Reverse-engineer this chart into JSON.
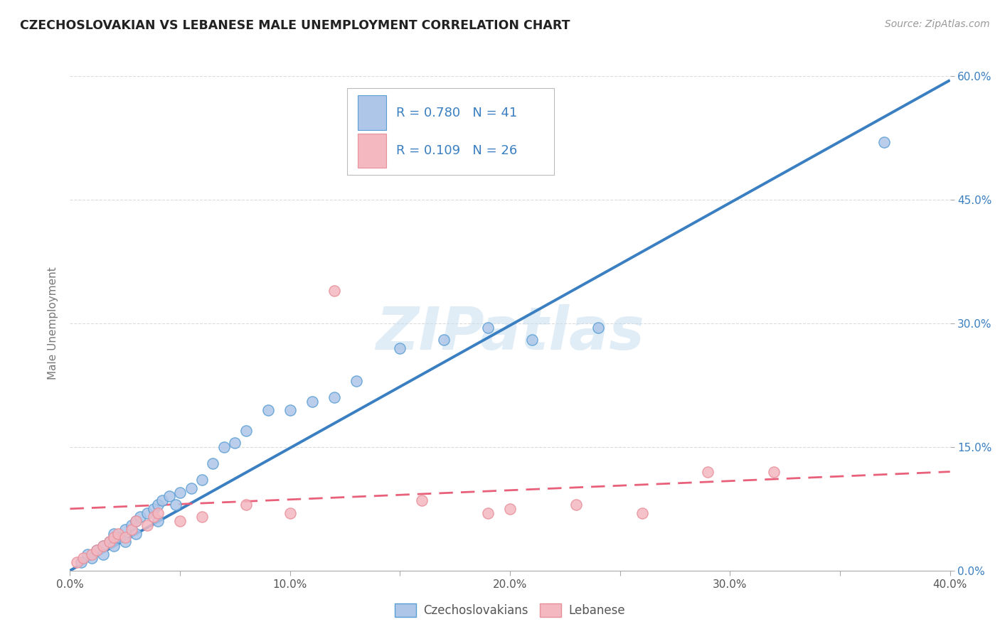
{
  "title": "CZECHOSLOVAKIAN VS LEBANESE MALE UNEMPLOYMENT CORRELATION CHART",
  "source_text": "Source: ZipAtlas.com",
  "ylabel": "Male Unemployment",
  "watermark": "ZIPatlas",
  "xlim": [
    0.0,
    0.4
  ],
  "ylim": [
    0.0,
    0.6
  ],
  "xticks": [
    0.0,
    0.05,
    0.1,
    0.15,
    0.2,
    0.25,
    0.3,
    0.35,
    0.4
  ],
  "xticklabels": [
    "0.0%",
    "",
    "10.0%",
    "",
    "20.0%",
    "",
    "30.0%",
    "",
    "40.0%"
  ],
  "yticks_right": [
    0.0,
    0.15,
    0.3,
    0.45,
    0.6
  ],
  "yticklabels_right": [
    "0.0%",
    "15.0%",
    "30.0%",
    "45.0%",
    "60.0%"
  ],
  "legend_R1": "R = 0.780",
  "legend_N1": "N = 41",
  "legend_R2": "R = 0.109",
  "legend_N2": "N = 26",
  "color_czech": "#aec6e8",
  "color_lebanese": "#f4b8c1",
  "color_czech_edge": "#5a9fd4",
  "color_lebanese_edge": "#e8909a",
  "color_czech_line": "#3a7fc1",
  "color_lebanese_line": "#e8607a",
  "color_legend_text": "#3a7fc1",
  "background_color": "#ffffff",
  "grid_color": "#cccccc",
  "title_color": "#222222",
  "right_tick_color": "#3a7fc1",
  "czech_scatter_x": [
    0.005,
    0.008,
    0.01,
    0.012,
    0.015,
    0.015,
    0.018,
    0.02,
    0.02,
    0.022,
    0.025,
    0.025,
    0.028,
    0.03,
    0.03,
    0.032,
    0.035,
    0.038,
    0.04,
    0.04,
    0.042,
    0.045,
    0.048,
    0.05,
    0.055,
    0.06,
    0.065,
    0.07,
    0.075,
    0.08,
    0.09,
    0.1,
    0.11,
    0.12,
    0.13,
    0.15,
    0.17,
    0.19,
    0.21,
    0.24,
    0.37
  ],
  "czech_scatter_y": [
    0.01,
    0.02,
    0.015,
    0.025,
    0.03,
    0.02,
    0.035,
    0.03,
    0.045,
    0.04,
    0.05,
    0.035,
    0.055,
    0.06,
    0.045,
    0.065,
    0.07,
    0.075,
    0.08,
    0.06,
    0.085,
    0.09,
    0.08,
    0.095,
    0.1,
    0.11,
    0.13,
    0.15,
    0.155,
    0.17,
    0.195,
    0.195,
    0.205,
    0.21,
    0.23,
    0.27,
    0.28,
    0.295,
    0.28,
    0.295,
    0.52
  ],
  "lebanese_scatter_x": [
    0.003,
    0.006,
    0.01,
    0.012,
    0.015,
    0.018,
    0.02,
    0.022,
    0.025,
    0.028,
    0.03,
    0.035,
    0.038,
    0.04,
    0.05,
    0.06,
    0.08,
    0.1,
    0.12,
    0.16,
    0.19,
    0.2,
    0.23,
    0.26,
    0.29,
    0.32
  ],
  "lebanese_scatter_y": [
    0.01,
    0.015,
    0.02,
    0.025,
    0.03,
    0.035,
    0.04,
    0.045,
    0.04,
    0.05,
    0.06,
    0.055,
    0.065,
    0.07,
    0.06,
    0.065,
    0.08,
    0.07,
    0.34,
    0.085,
    0.07,
    0.075,
    0.08,
    0.07,
    0.12,
    0.12
  ],
  "czech_line_x0": 0.0,
  "czech_line_y0": 0.0,
  "czech_line_x1": 0.4,
  "czech_line_y1": 0.595,
  "lebanese_line_x0": 0.0,
  "lebanese_line_y0": 0.075,
  "lebanese_line_x1": 0.4,
  "lebanese_line_y1": 0.12
}
